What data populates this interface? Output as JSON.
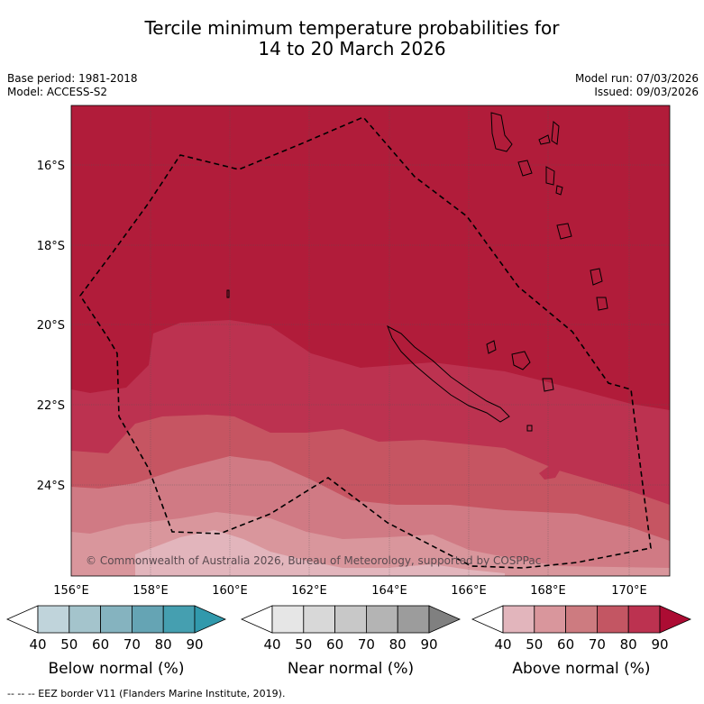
{
  "title_line1": "Tercile minimum temperature probabilities for",
  "title_line2": "14 to 20 March 2026",
  "base_period": "Base period: 1981-2018",
  "model": "Model: ACCESS-S2",
  "model_run": "Model run: 07/03/2026",
  "issued": "Issued: 09/03/2026",
  "map": {
    "lat_labels": [
      "16°S",
      "18°S",
      "20°S",
      "22°S",
      "24°S"
    ],
    "lon_labels": [
      "156°E",
      "158°E",
      "160°E",
      "162°E",
      "164°E",
      "166°E",
      "168°E",
      "170°E"
    ],
    "copyright": "© Commonwealth of Australia 2026, Bureau of Meteorology, supported by COSPPac",
    "colors": {
      "above_90": "#b11c3a",
      "above_80": "#bc3250",
      "above_70": "#c65562",
      "above_60": "#d07a84",
      "above_50": "#d9969c",
      "above_40": "#e2b5bc"
    }
  },
  "colorbars": [
    {
      "title": "Below normal (%)",
      "ticks": [
        "40",
        "50",
        "60",
        "70",
        "80",
        "90"
      ],
      "colors": [
        "#ffffff",
        "#c0d4db",
        "#a4c4cc",
        "#85b3bf",
        "#65a4b4",
        "#459fb0",
        "#3199ac"
      ]
    },
    {
      "title": "Near normal (%)",
      "ticks": [
        "40",
        "50",
        "60",
        "70",
        "80",
        "90"
      ],
      "colors": [
        "#ffffff",
        "#e6e6e6",
        "#d8d8d8",
        "#c8c8c8",
        "#b4b4b4",
        "#9c9c9c",
        "#808080"
      ]
    },
    {
      "title": "Above normal (%)",
      "ticks": [
        "40",
        "50",
        "60",
        "70",
        "80",
        "90"
      ],
      "colors": [
        "#ffffff",
        "#e2b5bc",
        "#d9969c",
        "#cd7b80",
        "#c35663",
        "#bc3250",
        "#ac0c33"
      ]
    }
  ],
  "footer": "-- -- -- EEZ border V11 (Flanders Marine Institute, 2019)."
}
